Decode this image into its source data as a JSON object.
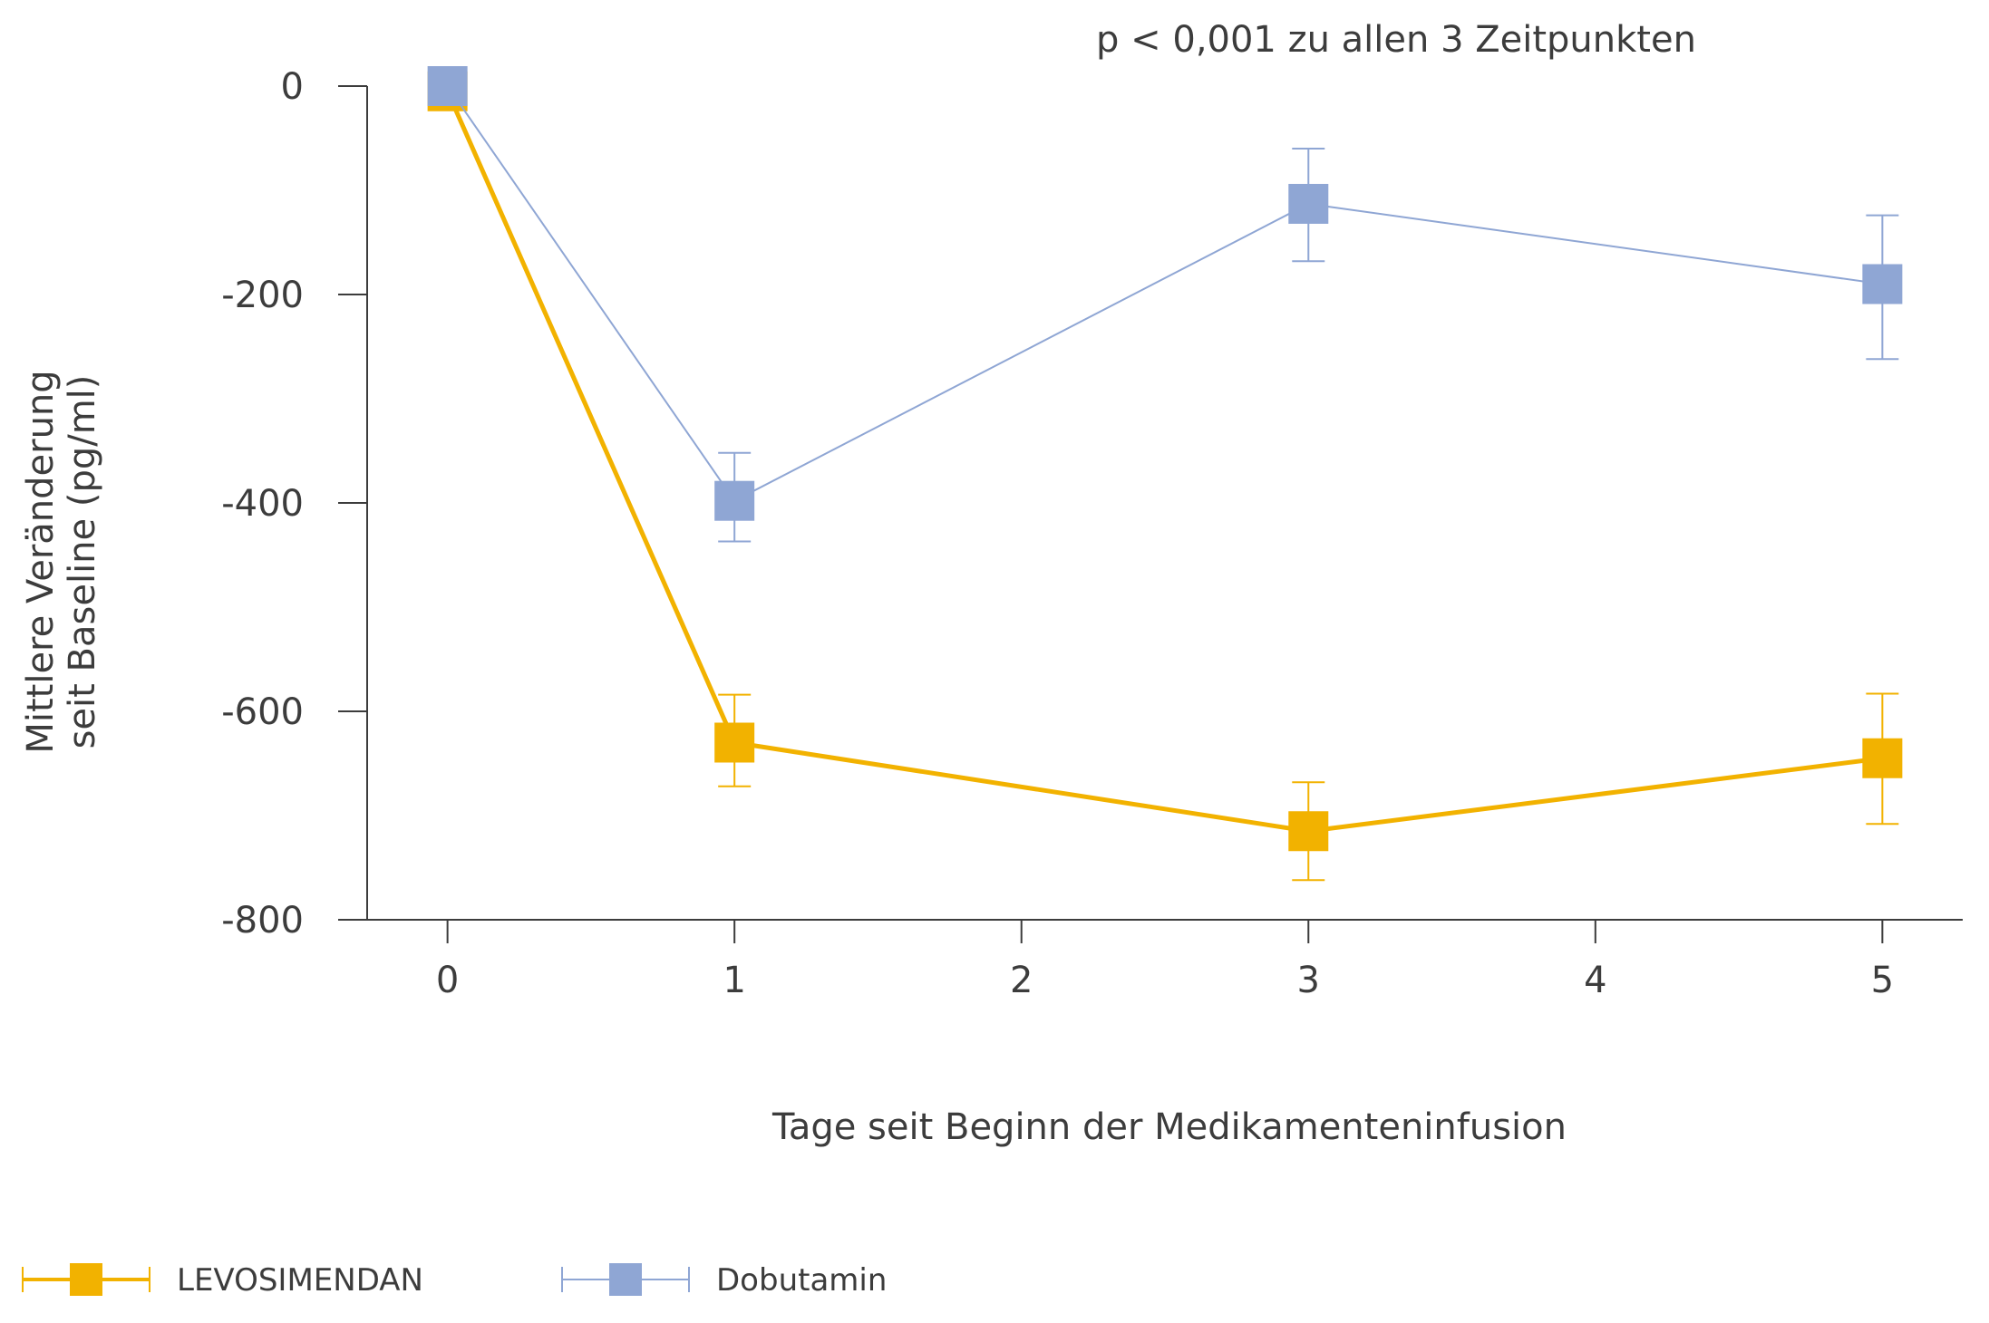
{
  "chart_data": {
    "type": "line",
    "title": "",
    "annotation": "p < 0,001 zu allen 3 Zeitpunkten",
    "xlabel": "Tage seit Beginn der Medikamenteninfusion",
    "ylabel_lines": [
      "Mittlere Veränderung",
      "seit Baseline (pg/ml)"
    ],
    "xlim": [
      -0.28,
      5.28
    ],
    "ylim": [
      -800,
      0
    ],
    "x_ticks": [
      0,
      1,
      2,
      3,
      4,
      5
    ],
    "x_tick_labels": [
      "0",
      "1",
      "2",
      "3",
      "4",
      "5"
    ],
    "y_ticks": [
      0,
      -200,
      -400,
      -600,
      -800
    ],
    "y_tick_labels": [
      "0",
      "-200",
      "-400",
      "-600",
      "-800"
    ],
    "grid": false,
    "legend_position": "bottom-left",
    "series": [
      {
        "name": "LEVOSIMENDAN",
        "color": "#f2b200",
        "x": [
          0,
          1,
          3,
          5
        ],
        "y": [
          -5,
          -630,
          -715,
          -645
        ],
        "y_err_low": [
          null,
          -672,
          -762,
          -708
        ],
        "y_err_high": [
          null,
          -584,
          -668,
          -583
        ]
      },
      {
        "name": "Dobutamin",
        "color": "#8fa6d4",
        "x": [
          0,
          1,
          3,
          5
        ],
        "y": [
          0,
          -398,
          -113,
          -190
        ],
        "y_err_low": [
          null,
          -437,
          -168,
          -262
        ],
        "y_err_high": [
          null,
          -352,
          -60,
          -124
        ]
      }
    ]
  }
}
